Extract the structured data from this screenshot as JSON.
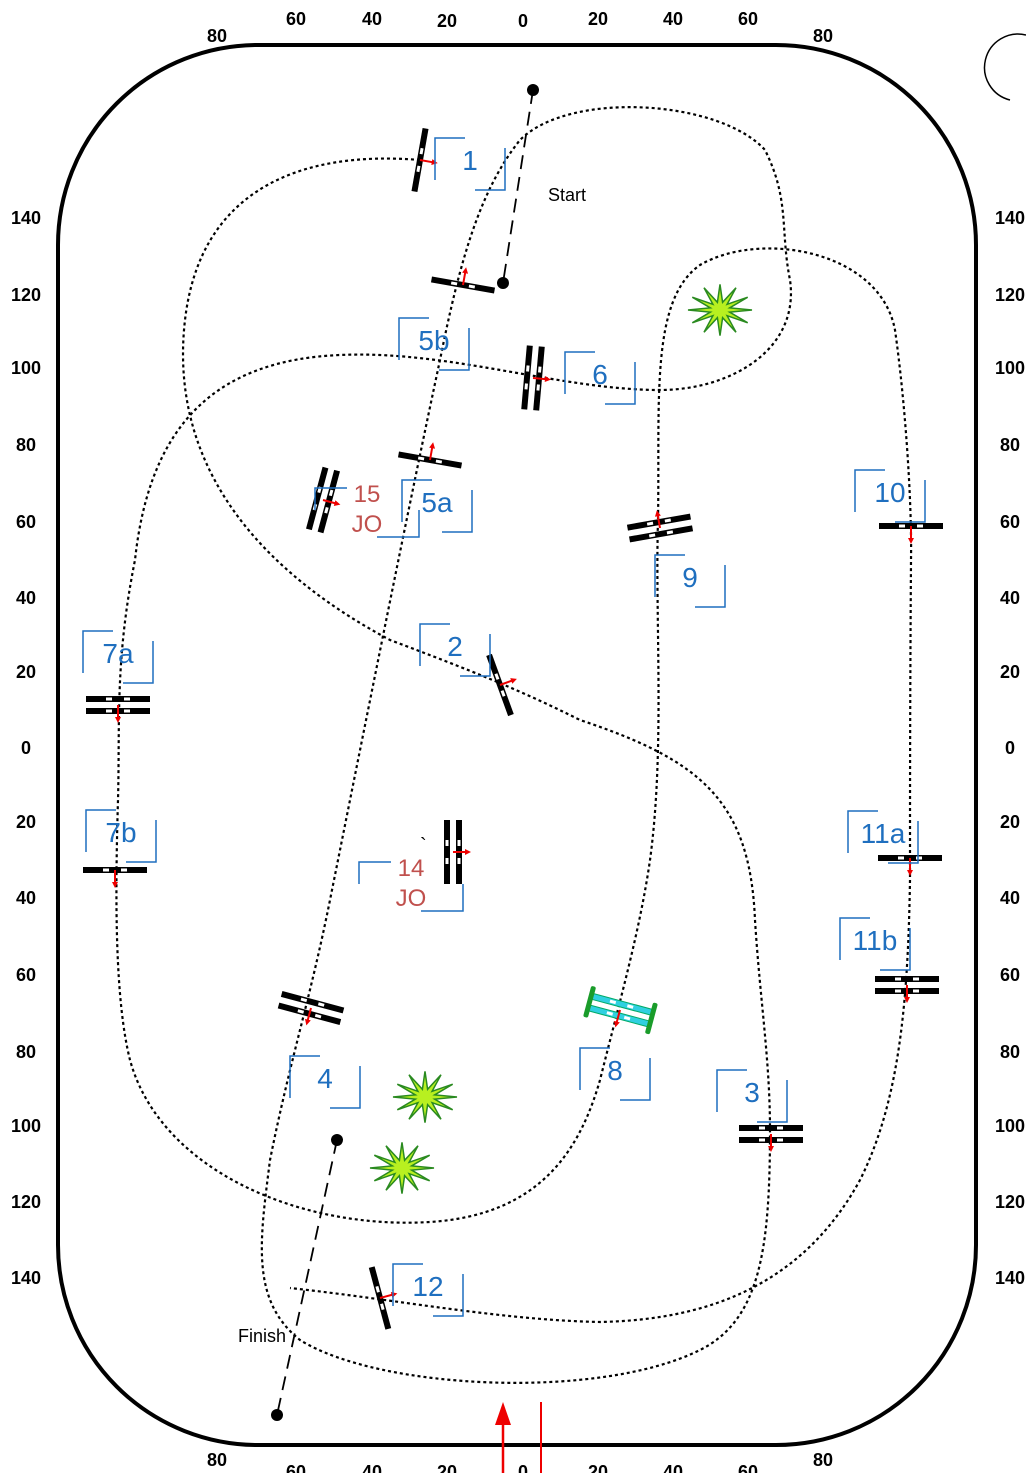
{
  "scale": {
    "top": [
      "80",
      "60",
      "40",
      "20",
      "0",
      "20",
      "40",
      "60",
      "80"
    ],
    "bottom": [
      "80",
      "60",
      "40",
      "20",
      "0",
      "20",
      "40",
      "60",
      "80"
    ],
    "left": [
      "140",
      "120",
      "100",
      "80",
      "60",
      "40",
      "20",
      "0",
      "20",
      "40",
      "60",
      "80",
      "100",
      "120",
      "140"
    ],
    "right": [
      "140",
      "120",
      "100",
      "80",
      "60",
      "40",
      "20",
      "0",
      "20",
      "40",
      "60",
      "80",
      "100",
      "120",
      "140"
    ]
  },
  "start": "Start",
  "finish": "Finish",
  "mark": "`",
  "fences": [
    {
      "label": "1"
    },
    {
      "label": "5b"
    },
    {
      "label": "6"
    },
    {
      "label": "5a"
    },
    {
      "label": "10"
    },
    {
      "label": "9"
    },
    {
      "label": "7a"
    },
    {
      "label": "2"
    },
    {
      "label": "7b"
    },
    {
      "label": "11a"
    },
    {
      "label": "11b"
    },
    {
      "label": "8"
    },
    {
      "label": "4"
    },
    {
      "label": "3"
    },
    {
      "label": "12"
    }
  ],
  "jokers": [
    {
      "number": "15",
      "text": "JO"
    },
    {
      "number": "14",
      "text": "JO"
    }
  ]
}
